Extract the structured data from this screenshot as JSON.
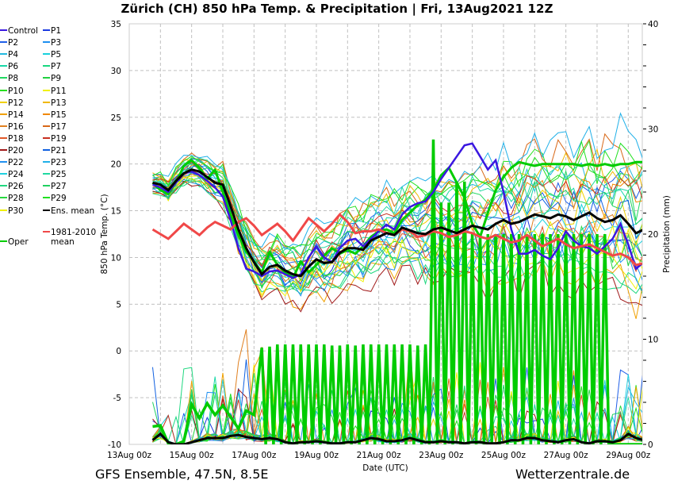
{
  "header": {
    "title": "Zürich  (CH)  850 hPa Temp. & Precipitation | Fri, 13Aug2021 12Z"
  },
  "footer": {
    "source": "GFS Ensemble, 47.5N, 8.5E",
    "site": "Wetterzentrale.de"
  },
  "colors": {
    "control": "#3a17e0",
    "ens_mean": "#000000",
    "climatology": "#f04848",
    "oper": "#00cc00",
    "grid": "#c0c0c0"
  },
  "legend": {
    "items": [
      {
        "label": "Control",
        "color": "#3a17e0"
      },
      {
        "label": "P1",
        "color": "#1a3ae0"
      },
      {
        "label": "P2",
        "color": "#1f5fe8"
      },
      {
        "label": "P3",
        "color": "#1e90f0"
      },
      {
        "label": "P4",
        "color": "#22b8e0"
      },
      {
        "label": "P5",
        "color": "#18d0dc"
      },
      {
        "label": "P6",
        "color": "#18d8a8"
      },
      {
        "label": "P7",
        "color": "#18d880"
      },
      {
        "label": "P8",
        "color": "#20d860"
      },
      {
        "label": "P9",
        "color": "#20d040"
      },
      {
        "label": "P10",
        "color": "#28e020"
      },
      {
        "label": "P11",
        "color": "#f0f000"
      },
      {
        "label": "P12",
        "color": "#f0d000"
      },
      {
        "label": "P13",
        "color": "#f0b800"
      },
      {
        "label": "P14",
        "color": "#f0a000"
      },
      {
        "label": "P15",
        "color": "#f08800"
      },
      {
        "label": "P16",
        "color": "#e08020"
      },
      {
        "label": "P17",
        "color": "#d86818"
      },
      {
        "label": "P18",
        "color": "#e05828"
      },
      {
        "label": "P19",
        "color": "#c83020"
      },
      {
        "label": "P20",
        "color": "#a01818"
      },
      {
        "label": "P21",
        "color": "#1060e0"
      },
      {
        "label": "P22",
        "color": "#2090f0"
      },
      {
        "label": "P23",
        "color": "#20b0e8"
      },
      {
        "label": "P24",
        "color": "#20d0e0"
      },
      {
        "label": "P25",
        "color": "#20d8a0"
      },
      {
        "label": "P26",
        "color": "#20d880"
      },
      {
        "label": "P27",
        "color": "#20d060"
      },
      {
        "label": "P28",
        "color": "#28d840"
      },
      {
        "label": "P29",
        "color": "#20e020"
      },
      {
        "label": "P30",
        "color": "#f0f000"
      },
      {
        "label": "Ens. mean",
        "color": "#000000"
      }
    ],
    "oper_label": "Oper",
    "clim_label_1": "1981-2010",
    "clim_label_2": "mean"
  },
  "chart_data": {
    "type": "line",
    "title": "Zürich  (CH)  850 hPa Temp. & Precipitation | Fri, 13Aug2021 12Z",
    "xlabel": "Date (UTC)",
    "ylabel": "850 hPa Temp. (°C)",
    "y2label": "Precipitation (mm)",
    "ylim": [
      -10,
      35
    ],
    "y2lim": [
      0,
      40
    ],
    "xlim_days": [
      0,
      16.45
    ],
    "x_ticks": [
      "13Aug 00z",
      "15Aug 00z",
      "17Aug 00z",
      "19Aug 00z",
      "21Aug 00z",
      "23Aug 00z",
      "25Aug 00z",
      "27Aug 00z",
      "29Aug 00z"
    ],
    "y_ticks": [
      "35",
      "30",
      "25",
      "20",
      "15",
      "10",
      "5",
      "0",
      "-5",
      "-10"
    ],
    "y2_ticks": [
      "40",
      "30",
      "20",
      "10",
      "0"
    ],
    "grid": true,
    "x_start_day": 0.75,
    "x_step_day": 0.25,
    "series": [
      {
        "name": "Ens. mean",
        "axis": "temp",
        "values": [
          18,
          17.8,
          17.2,
          18.2,
          19,
          19.4,
          19.2,
          18.6,
          18,
          17.8,
          15.5,
          13,
          11,
          9.5,
          8.2,
          9,
          9.2,
          8.6,
          8.2,
          8,
          9,
          9.8,
          9.4,
          9.5,
          10.5,
          11,
          11,
          10.8,
          11.8,
          12.2,
          12.6,
          12.4,
          13.2,
          12.9,
          12.6,
          12.5,
          13,
          13.2,
          12.9,
          12.6,
          13,
          13.4,
          13.2,
          13,
          13.6,
          14,
          13.6,
          13.8,
          14.2,
          14.6,
          14.4,
          14.2,
          14.6,
          14.4,
          14,
          14.4,
          14.8,
          14.2,
          13.8,
          14,
          14.5,
          13.6,
          12.6,
          13
        ]
      },
      {
        "name": "1981-2010 mean",
        "axis": "temp",
        "values": [
          13,
          12.5,
          12,
          12.8,
          13.6,
          13,
          12.4,
          13.2,
          13.8,
          13.4,
          13,
          13.8,
          14.2,
          13.4,
          12.4,
          13,
          13.6,
          12.8,
          11.8,
          13,
          14.2,
          13.5,
          12.8,
          13.6,
          14.6,
          13.8,
          12.6,
          12.8,
          12.8,
          13,
          12.6,
          12.4,
          13,
          12.8,
          12.2,
          12.4,
          12.8,
          12.6,
          12.2,
          12.4,
          12.8,
          12.6,
          12.2,
          12,
          12.4,
          12,
          11.6,
          11.8,
          12.4,
          11.8,
          11.2,
          11.6,
          12,
          11.4,
          11,
          11.2,
          11.4,
          11,
          10.6,
          10.2,
          10.4,
          10,
          9.2,
          9.4
        ]
      },
      {
        "name": "Control",
        "axis": "temp",
        "values": [
          17.8,
          17.5,
          17,
          18,
          19,
          19.2,
          18.8,
          18.2,
          17.5,
          16.5,
          14,
          11,
          8.8,
          8.5,
          8,
          8.5,
          8.6,
          8.2,
          7.8,
          8.2,
          10,
          11.2,
          10,
          9.5,
          11,
          11.8,
          12,
          11.2,
          12,
          12.8,
          13.5,
          13,
          14.6,
          15.4,
          15.8,
          16,
          17,
          18.4,
          19.6,
          20.8,
          22,
          22.2,
          20.8,
          19.4,
          20.4,
          17,
          13,
          10.4,
          10.4,
          10.8,
          10.2,
          9.8,
          11,
          12.8,
          11.8,
          11.2,
          11,
          10.4,
          11.2,
          12,
          13.6,
          11.4,
          8.8,
          9.5
        ]
      },
      {
        "name": "Ens. mean precip",
        "axis": "precip",
        "values": [
          0.4,
          1,
          0.2,
          0,
          0,
          0.2,
          0.4,
          0.6,
          0.6,
          0.6,
          0.8,
          0.9,
          0.7,
          0.6,
          0.5,
          0.6,
          0.5,
          0.2,
          0.1,
          0.2,
          0.2,
          0.3,
          0.2,
          0.1,
          0.1,
          0.2,
          0.2,
          0.4,
          0.6,
          0.5,
          0.3,
          0.3,
          0.4,
          0.6,
          0.4,
          0.2,
          0.2,
          0.3,
          0.2,
          0.2,
          0.1,
          0.2,
          0.2,
          0.1,
          0.1,
          0.2,
          0.4,
          0.4,
          0.6,
          0.6,
          0.4,
          0.3,
          0.2,
          0.4,
          0.5,
          0.2,
          0.1,
          0.3,
          0.3,
          0.2,
          0.4,
          1,
          0.6,
          0.4
        ]
      },
      {
        "name": "Oper temp",
        "axis": "temp",
        "values": [
          18,
          17.2,
          16.8,
          18,
          19.8,
          20.4,
          19.6,
          18.4,
          19.4,
          17,
          14.6,
          12.4,
          10.6,
          9.6,
          8.4,
          10.6,
          9.2,
          8.4,
          7.8,
          9.6,
          8.4,
          9.2,
          10.2,
          11,
          10.4,
          10.8,
          10.4,
          11.2,
          12.2,
          12.8,
          13,
          12.6,
          14,
          14.8,
          15.6,
          16.2,
          17.2,
          18.8,
          19.6,
          18,
          16.4,
          13.6,
          12.2,
          14.8,
          17.2,
          18.6,
          19.6,
          20.2,
          20,
          19.8,
          20,
          20,
          20,
          20,
          20,
          19.8,
          20,
          19.8,
          20,
          19.8,
          20,
          20,
          20.2,
          20.2
        ]
      },
      {
        "name": "Oper precip",
        "axis": "precip",
        "values": [
          1.7,
          1.8,
          0.1,
          0,
          0.3,
          3.8,
          2.5,
          3.9,
          2.8,
          3.7,
          2.6,
          1.5,
          3.2,
          2.8,
          9.2,
          9.3,
          9.5,
          9.5,
          9.5,
          9.5,
          9.5,
          9.5,
          9.5,
          9.4,
          9.4,
          9.5,
          9.4,
          9.5,
          9.5,
          9.5,
          9.5,
          9.5,
          9.5,
          9.5,
          9.4,
          9.5,
          29,
          23,
          23,
          25,
          25,
          20,
          20,
          20,
          20,
          20,
          20,
          20,
          20,
          20,
          20,
          20,
          20,
          20,
          20,
          20,
          20,
          20,
          20,
          0,
          0,
          0,
          0,
          0
        ]
      }
    ],
    "members": {
      "count": 31,
      "temp_offsets": [
        0.0,
        -0.6,
        0.9,
        -1.2,
        1.5,
        -0.3,
        0.6,
        -1.8,
        1.2,
        -0.9,
        2.0,
        -1.5,
        0.3,
        1.8,
        -2.2,
        0.8,
        -0.5,
        2.4,
        -1.0,
        1.1,
        -2.6,
        0.4,
        -1.4,
        2.8,
        -0.2,
        1.6,
        -2.0,
        0.7,
        -1.1,
        2.2,
        -0.8
      ],
      "precip_peaks": [
        4.6,
        2.2,
        7.0,
        3.4,
        4.8,
        3.0,
        5.6,
        2.8,
        6.4,
        3.8,
        5.2,
        7.6,
        3.2,
        4.4,
        8.4,
        6.2,
        9.8,
        11.0,
        5.0,
        4.0,
        3.6,
        6.8,
        5.4,
        4.2,
        6.0,
        3.0,
        7.2,
        4.8,
        5.8,
        3.4,
        7.4
      ]
    }
  }
}
